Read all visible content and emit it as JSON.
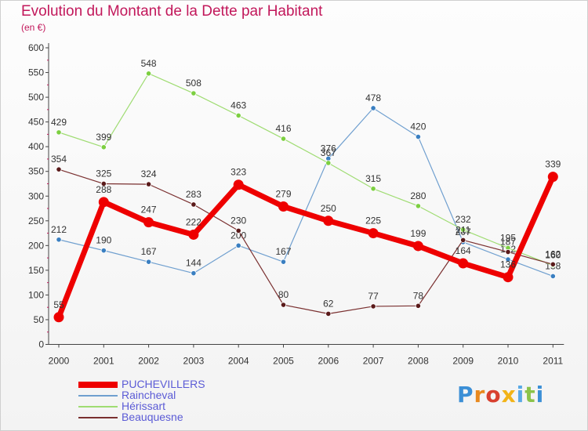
{
  "title": "Evolution du Montant de la Dette par Habitant",
  "subtitle": "(en €)",
  "logo": {
    "text": "Proxiti",
    "letter_colors": [
      "#3b8fd6",
      "#e8891e",
      "#d8402f",
      "#f2b418",
      "#5aa9e6",
      "#8bc34a",
      "#3b8fd6"
    ]
  },
  "chart_data": {
    "type": "line",
    "title": "Evolution du Montant de la Dette par Habitant",
    "ylabel": "(en €)",
    "xlabel": "",
    "ylim": [
      0,
      600
    ],
    "yticks": [
      0,
      50,
      100,
      150,
      200,
      250,
      300,
      350,
      400,
      450,
      500,
      550,
      600
    ],
    "categories": [
      "2000",
      "2001",
      "2002",
      "2003",
      "2004",
      "2005",
      "2006",
      "2007",
      "2008",
      "2009",
      "2010",
      "2011"
    ],
    "grid": false,
    "legend_position": "bottom-left",
    "series": [
      {
        "name": "Raincheval",
        "color": "#6f9fcf",
        "marker": "#3a7fc1",
        "width": 1.2,
        "values": [
          212,
          190,
          167,
          144,
          200,
          167,
          376,
          478,
          420,
          207,
          172,
          138
        ]
      },
      {
        "name": "Hérissart",
        "color": "#9fdc72",
        "marker": "#7ccf40",
        "width": 1.2,
        "values": [
          429,
          399,
          548,
          508,
          463,
          416,
          367,
          315,
          280,
          232,
          195,
          160
        ]
      },
      {
        "name": "Beauquesne",
        "color": "#7a3030",
        "marker": "#5a1a1a",
        "width": 1.2,
        "values": [
          354,
          325,
          324,
          283,
          230,
          80,
          62,
          77,
          78,
          211,
          187,
          162
        ]
      },
      {
        "name": "PUCHEVILLERS",
        "color": "#ee0000",
        "marker": "#ee0000",
        "width": 7,
        "values": [
          55,
          288,
          247,
          222,
          323,
          279,
          250,
          225,
          199,
          164,
          136,
          339
        ]
      }
    ]
  }
}
